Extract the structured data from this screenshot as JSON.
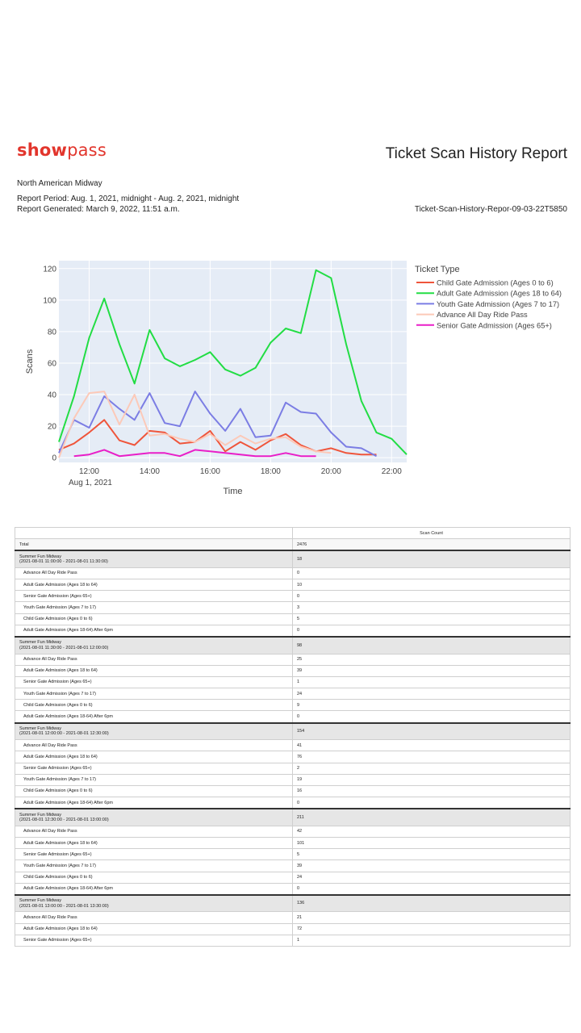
{
  "header": {
    "logo_show": "show",
    "logo_pass": "pass",
    "title": "Ticket Scan History Report",
    "organization": "North American Midway",
    "report_period": "Report Period: Aug. 1, 2021, midnight - Aug. 2, 2021, midnight",
    "report_generated": "Report Generated: March 9, 2022, 11:51 a.m.",
    "file_id": "Ticket-Scan-History-Repor-09-03-22T5850"
  },
  "chart_data": {
    "type": "line",
    "xlabel": "Time",
    "ylabel": "Scans",
    "ylim": [
      -3,
      125
    ],
    "yticks": [
      0,
      20,
      40,
      60,
      80,
      100,
      120
    ],
    "xticks": [
      {
        "h": 12,
        "label": "12:00"
      },
      {
        "h": 14,
        "label": "14:00"
      },
      {
        "h": 16,
        "label": "16:00"
      },
      {
        "h": 18,
        "label": "18:00"
      },
      {
        "h": 20,
        "label": "20:00"
      },
      {
        "h": 22,
        "label": "22:00"
      }
    ],
    "date_label": "Aug 1, 2021",
    "xlim": [
      11.0,
      22.5
    ],
    "grid": true,
    "legend_title": "Ticket Type",
    "legend_position": "right",
    "series": [
      {
        "name": "Child Gate Admission (Ages 0 to 6)",
        "color": "#ef553b",
        "x": [
          11.0,
          11.5,
          12.0,
          12.5,
          13.0,
          13.5,
          14.0,
          14.5,
          15.0,
          15.5,
          16.0,
          16.5,
          17.0,
          17.5,
          18.0,
          18.5,
          19.0,
          19.5,
          20.0,
          20.5,
          21.0,
          21.5
        ],
        "y": [
          5,
          9,
          16,
          24,
          11,
          8,
          17,
          16,
          9,
          10,
          17,
          4,
          10,
          5,
          11,
          15,
          8,
          4,
          6,
          3,
          2,
          2
        ]
      },
      {
        "name": "Adult Gate Admission (Ages 18 to 64)",
        "color": "#22dd44",
        "x": [
          11.0,
          11.5,
          12.0,
          12.5,
          13.0,
          13.5,
          14.0,
          14.5,
          15.0,
          15.5,
          16.0,
          16.5,
          17.0,
          17.5,
          18.0,
          18.5,
          19.0,
          19.5,
          20.0,
          20.5,
          21.0,
          21.5,
          22.0,
          22.5
        ],
        "y": [
          10,
          39,
          76,
          101,
          72,
          47,
          81,
          63,
          58,
          62,
          67,
          56,
          52,
          57,
          73,
          82,
          79,
          119,
          114,
          72,
          36,
          16,
          12,
          2
        ]
      },
      {
        "name": "Youth Gate Admission (Ages 7 to 17)",
        "color": "#7b7de4",
        "x": [
          11.0,
          11.5,
          12.0,
          12.5,
          13.0,
          13.5,
          14.0,
          14.5,
          15.0,
          15.5,
          16.0,
          16.5,
          17.0,
          17.5,
          18.0,
          18.5,
          19.0,
          19.5,
          20.0,
          20.5,
          21.0,
          21.5
        ],
        "y": [
          3,
          24,
          19,
          39,
          31,
          24,
          41,
          22,
          20,
          42,
          28,
          17,
          31,
          13,
          14,
          35,
          29,
          28,
          16,
          7,
          6,
          1
        ]
      },
      {
        "name": "Advance All Day Ride Pass",
        "color": "#fcc9b8",
        "x": [
          11.0,
          11.5,
          12.0,
          12.5,
          13.0,
          13.5,
          14.0,
          14.5,
          15.0,
          15.5,
          16.0,
          16.5,
          17.0,
          17.5,
          18.0,
          18.5,
          19.0,
          19.5,
          20.0
        ],
        "y": [
          0,
          25,
          41,
          42,
          21,
          40,
          14,
          15,
          12,
          10,
          15,
          8,
          14,
          9,
          12,
          13,
          7,
          4,
          3
        ]
      },
      {
        "name": "Senior Gate Admission (Ages 65+)",
        "color": "#e91ec8",
        "x": [
          11.5,
          12.0,
          12.5,
          13.0,
          13.5,
          14.0,
          14.5,
          15.0,
          15.5,
          16.0,
          16.5,
          17.0,
          17.5,
          18.0,
          18.5,
          19.0,
          19.5
        ],
        "y": [
          1,
          2,
          5,
          1,
          2,
          3,
          3,
          1,
          5,
          4,
          3,
          2,
          1,
          1,
          3,
          1,
          1
        ]
      }
    ]
  },
  "table": {
    "headers": [
      "",
      "Scan Count"
    ],
    "rows": [
      {
        "kind": "total",
        "label": "Total",
        "count": "2476"
      },
      {
        "kind": "group",
        "label": "Summer Fun Midway",
        "label2": "(2021-08-01 11:00:00 - 2021-08-01 11:30:00)",
        "count": "18"
      },
      {
        "kind": "item",
        "label": "Advance All Day Ride Pass",
        "count": "0"
      },
      {
        "kind": "item",
        "label": "Adult Gate Admission (Ages 18 to 64)",
        "count": "10"
      },
      {
        "kind": "item",
        "label": "Senior Gate Admission (Ages 65+)",
        "count": "0"
      },
      {
        "kind": "item",
        "label": "Youth Gate Admission (Ages 7 to 17)",
        "count": "3"
      },
      {
        "kind": "item",
        "label": "Child Gate Admission (Ages 0 to 6)",
        "count": "5"
      },
      {
        "kind": "item",
        "label": "Adult Gate Admission (Ages 18-64) After 6pm",
        "count": "0"
      },
      {
        "kind": "group",
        "label": "Summer Fun Midway",
        "label2": "(2021-08-01 11:30:00 - 2021-08-01 12:00:00)",
        "count": "98"
      },
      {
        "kind": "item",
        "label": "Advance All Day Ride Pass",
        "count": "25"
      },
      {
        "kind": "item",
        "label": "Adult Gate Admission (Ages 18 to 64)",
        "count": "39"
      },
      {
        "kind": "item",
        "label": "Senior Gate Admission (Ages 65+)",
        "count": "1"
      },
      {
        "kind": "item",
        "label": "Youth Gate Admission (Ages 7 to 17)",
        "count": "24"
      },
      {
        "kind": "item",
        "label": "Child Gate Admission (Ages 0 to 6)",
        "count": "9"
      },
      {
        "kind": "item",
        "label": "Adult Gate Admission (Ages 18-64) After 6pm",
        "count": "0"
      },
      {
        "kind": "group",
        "label": "Summer Fun Midway",
        "label2": "(2021-08-01 12:00:00 - 2021-08-01 12:30:00)",
        "count": "154"
      },
      {
        "kind": "item",
        "label": "Advance All Day Ride Pass",
        "count": "41"
      },
      {
        "kind": "item",
        "label": "Adult Gate Admission (Ages 18 to 64)",
        "count": "76"
      },
      {
        "kind": "item",
        "label": "Senior Gate Admission (Ages 65+)",
        "count": "2"
      },
      {
        "kind": "item",
        "label": "Youth Gate Admission (Ages 7 to 17)",
        "count": "19"
      },
      {
        "kind": "item",
        "label": "Child Gate Admission (Ages 0 to 6)",
        "count": "16"
      },
      {
        "kind": "item",
        "label": "Adult Gate Admission (Ages 18-64) After 6pm",
        "count": "0"
      },
      {
        "kind": "group",
        "label": "Summer Fun Midway",
        "label2": "(2021-08-01 12:30:00 - 2021-08-01 13:00:00)",
        "count": "211"
      },
      {
        "kind": "item",
        "label": "Advance All Day Ride Pass",
        "count": "42"
      },
      {
        "kind": "item",
        "label": "Adult Gate Admission (Ages 18 to 64)",
        "count": "101"
      },
      {
        "kind": "item",
        "label": "Senior Gate Admission (Ages 65+)",
        "count": "5"
      },
      {
        "kind": "item",
        "label": "Youth Gate Admission (Ages 7 to 17)",
        "count": "39"
      },
      {
        "kind": "item",
        "label": "Child Gate Admission (Ages 0 to 6)",
        "count": "24"
      },
      {
        "kind": "item",
        "label": "Adult Gate Admission (Ages 18-64) After 6pm",
        "count": "0"
      },
      {
        "kind": "group",
        "label": "Summer Fun Midway",
        "label2": "(2021-08-01 13:00:00 - 2021-08-01 13:30:00)",
        "count": "136"
      },
      {
        "kind": "item",
        "label": "Advance All Day Ride Pass",
        "count": "21"
      },
      {
        "kind": "item",
        "label": "Adult Gate Admission (Ages 18 to 64)",
        "count": "72"
      },
      {
        "kind": "item",
        "label": "Senior Gate Admission (Ages 65+)",
        "count": "1"
      }
    ]
  }
}
